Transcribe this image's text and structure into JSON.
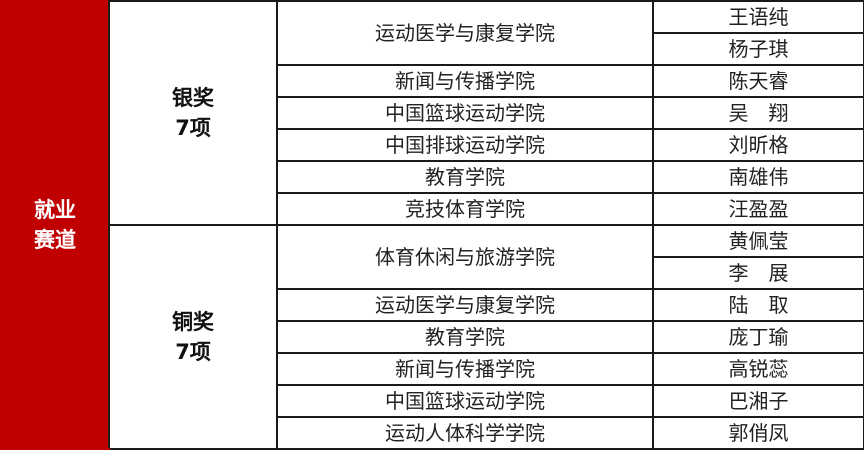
{
  "track": {
    "line1": "就业",
    "line2": "赛道",
    "color": "#c00000"
  },
  "groups": [
    {
      "award": "银奖",
      "count": "7项",
      "colleges": [
        {
          "name": "运动医学与康复学院",
          "students": [
            "王语纯",
            "杨子琪"
          ]
        },
        {
          "name": "新闻与传播学院",
          "students": [
            "陈天睿"
          ]
        },
        {
          "name": "中国篮球运动学院",
          "students": [
            "吴　翔"
          ]
        },
        {
          "name": "中国排球运动学院",
          "students": [
            "刘昕格"
          ]
        },
        {
          "name": "教育学院",
          "students": [
            "南雄伟"
          ]
        },
        {
          "name": "竞技体育学院",
          "students": [
            "汪盈盈"
          ]
        }
      ]
    },
    {
      "award": "铜奖",
      "count": "7项",
      "colleges": [
        {
          "name": "体育休闲与旅游学院",
          "students": [
            "黄佩莹",
            "李　展"
          ]
        },
        {
          "name": "运动医学与康复学院",
          "students": [
            "陆　取"
          ]
        },
        {
          "name": "教育学院",
          "students": [
            "庞丁瑜"
          ]
        },
        {
          "name": "新闻与传播学院",
          "students": [
            "高锐蕊"
          ]
        },
        {
          "name": "中国篮球运动学院",
          "students": [
            "巴湘子"
          ]
        },
        {
          "name": "运动人体科学学院",
          "students": [
            "郭俏凤"
          ]
        }
      ]
    }
  ]
}
